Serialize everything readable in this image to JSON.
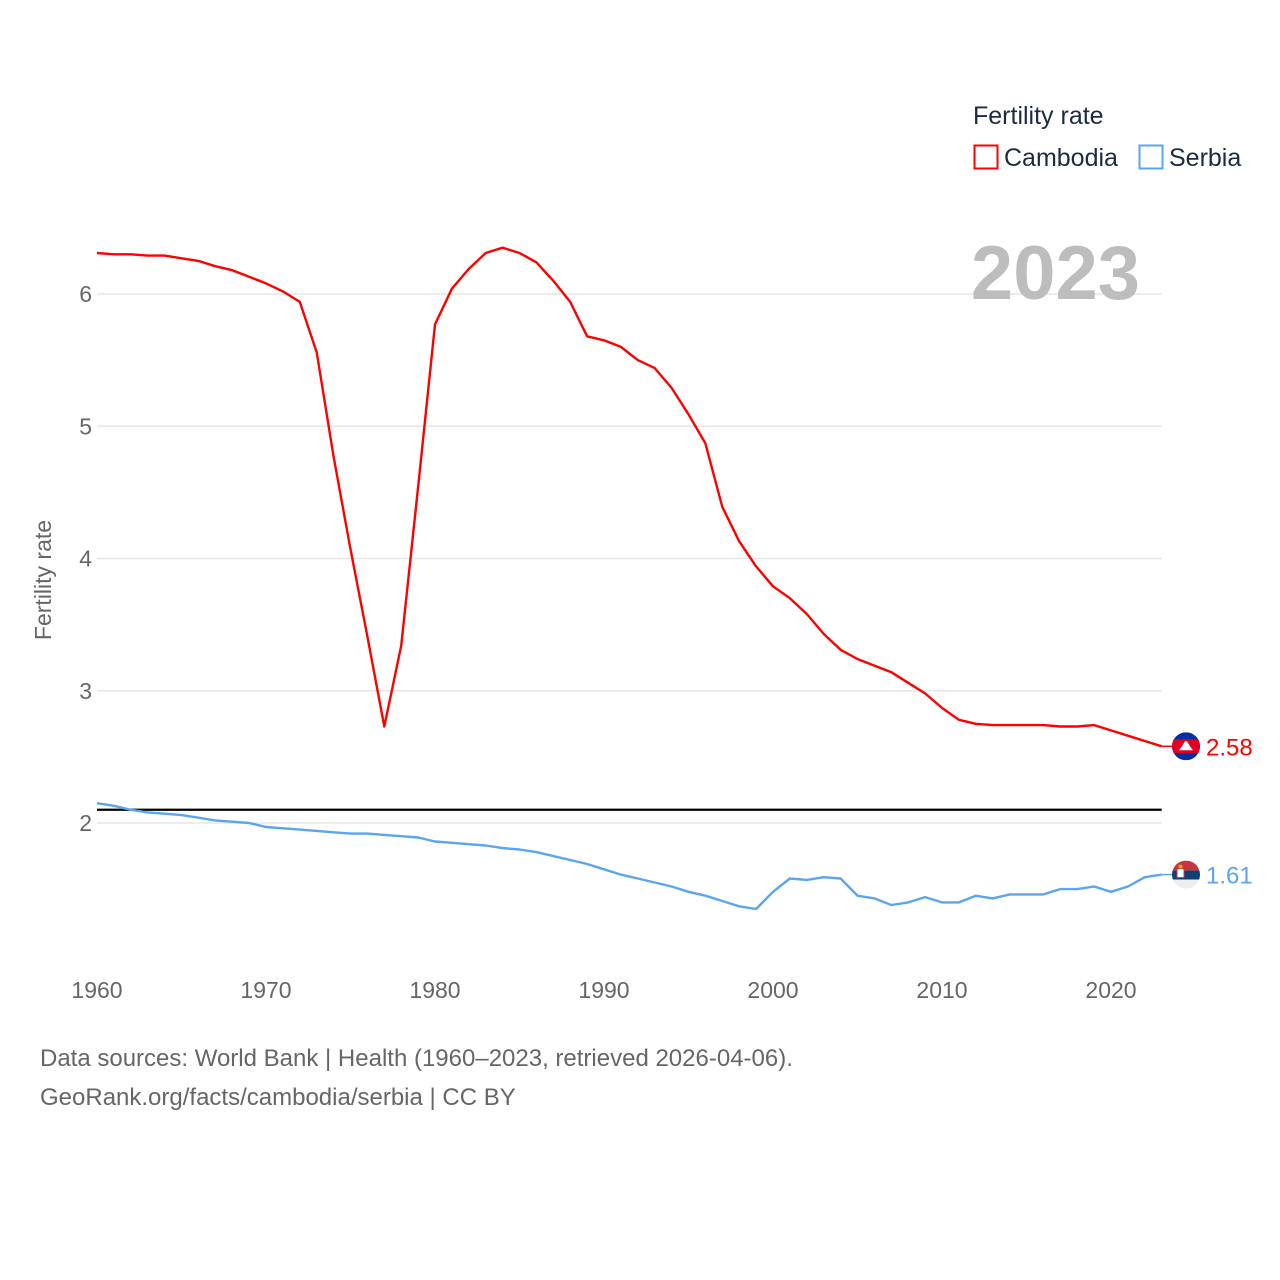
{
  "chart_data": {
    "type": "line",
    "title": "Fertility rate",
    "ylabel": "Fertility rate",
    "xlabel": "",
    "year_label": "2023",
    "xlim": [
      1960,
      2023
    ],
    "ylim": [
      1.0,
      6.6
    ],
    "x_ticks": [
      1960,
      1970,
      1980,
      1990,
      2000,
      2010,
      2020
    ],
    "y_ticks": [
      2,
      3,
      4,
      5,
      6
    ],
    "grid": true,
    "legend_position": "top-right",
    "reference_line": {
      "value": 2.1,
      "color": "#000000"
    },
    "x": [
      1960,
      1961,
      1962,
      1963,
      1964,
      1965,
      1966,
      1967,
      1968,
      1969,
      1970,
      1971,
      1972,
      1973,
      1974,
      1975,
      1976,
      1977,
      1978,
      1979,
      1980,
      1981,
      1982,
      1983,
      1984,
      1985,
      1986,
      1987,
      1988,
      1989,
      1990,
      1991,
      1992,
      1993,
      1994,
      1995,
      1996,
      1997,
      1998,
      1999,
      2000,
      2001,
      2002,
      2003,
      2004,
      2005,
      2006,
      2007,
      2008,
      2009,
      2010,
      2011,
      2012,
      2013,
      2014,
      2015,
      2016,
      2017,
      2018,
      2019,
      2020,
      2021,
      2022,
      2023
    ],
    "series": [
      {
        "name": "Cambodia",
        "color": "#ff0000",
        "end_label": "2.58",
        "flag": "cambodia-flag",
        "values": [
          6.31,
          6.3,
          6.3,
          6.29,
          6.29,
          6.27,
          6.25,
          6.21,
          6.18,
          6.13,
          6.08,
          6.02,
          5.94,
          5.56,
          4.77,
          4.07,
          3.41,
          2.73,
          3.34,
          4.54,
          5.77,
          6.04,
          6.19,
          6.31,
          6.35,
          6.31,
          6.24,
          6.1,
          5.94,
          5.68,
          5.65,
          5.6,
          5.5,
          5.44,
          5.29,
          5.09,
          4.87,
          4.39,
          4.13,
          3.94,
          3.79,
          3.7,
          3.58,
          3.43,
          3.31,
          3.24,
          3.19,
          3.14,
          3.06,
          2.98,
          2.87,
          2.78,
          2.75,
          2.74,
          2.74,
          2.74,
          2.74,
          2.73,
          2.73,
          2.74,
          2.7,
          2.66,
          2.62,
          2.58
        ]
      },
      {
        "name": "Serbia",
        "color": "#5aa5ee",
        "end_label": "1.61",
        "flag": "serbia-flag",
        "values": [
          2.15,
          2.13,
          2.1,
          2.08,
          2.07,
          2.06,
          2.04,
          2.02,
          2.01,
          2.0,
          1.97,
          1.96,
          1.95,
          1.94,
          1.93,
          1.92,
          1.92,
          1.91,
          1.9,
          1.89,
          1.86,
          1.85,
          1.84,
          1.83,
          1.81,
          1.8,
          1.78,
          1.75,
          1.72,
          1.69,
          1.65,
          1.61,
          1.58,
          1.55,
          1.52,
          1.48,
          1.45,
          1.41,
          1.37,
          1.35,
          1.48,
          1.58,
          1.57,
          1.59,
          1.58,
          1.45,
          1.43,
          1.38,
          1.4,
          1.44,
          1.4,
          1.4,
          1.45,
          1.43,
          1.46,
          1.46,
          1.46,
          1.5,
          1.5,
          1.52,
          1.48,
          1.52,
          1.59,
          1.61
        ]
      }
    ]
  },
  "footer": {
    "line1": "Data sources: World Bank | Health (1960–2023, retrieved 2026-04-06).",
    "line2": "GeoRank.org/facts/cambodia/serbia | CC BY"
  }
}
